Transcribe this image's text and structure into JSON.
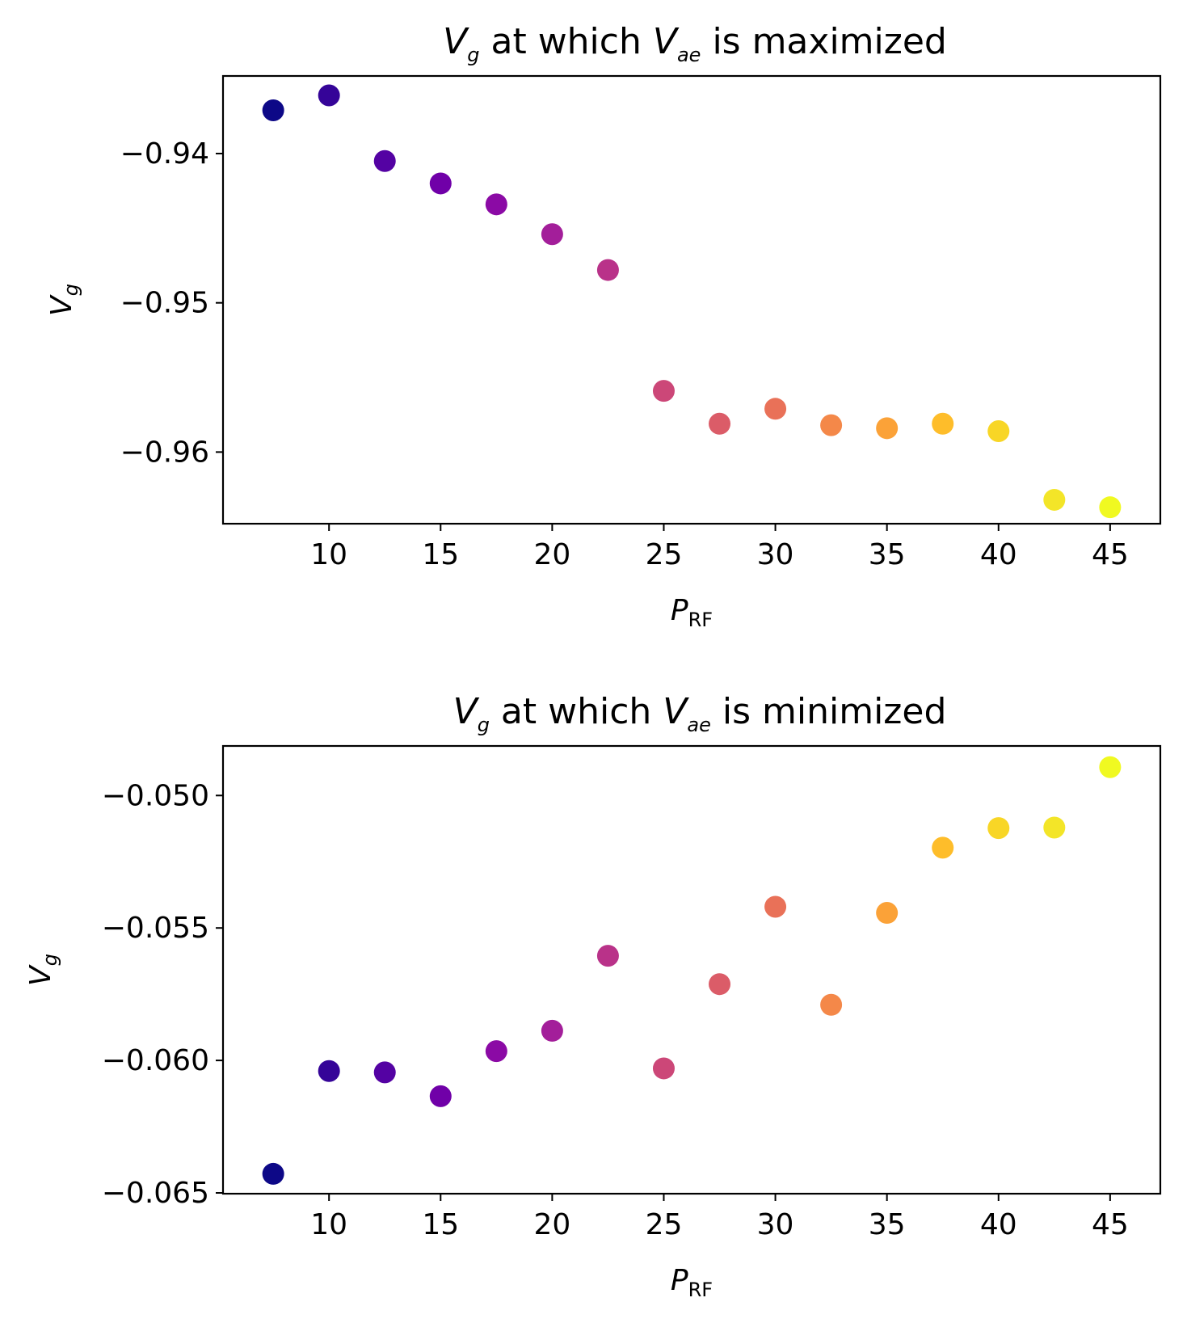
{
  "chart_data": [
    {
      "type": "scatter",
      "title": {
        "v": "V",
        "v_sub": "g",
        "mid": " at which ",
        "v2": "V",
        "v2_sub": "ae",
        "end": " is maximized"
      },
      "xlabel": {
        "main": "P",
        "sub": "RF"
      },
      "ylabel": {
        "main": "V",
        "sub": "g"
      },
      "xlim": [
        5.25,
        47.25
      ],
      "ylim": [
        -0.9648,
        -0.9348
      ],
      "xticks": [
        10,
        15,
        20,
        25,
        30,
        35,
        40,
        45
      ],
      "xtick_labels": [
        "10",
        "15",
        "20",
        "25",
        "30",
        "35",
        "40",
        "45"
      ],
      "yticks": [
        -0.94,
        -0.95,
        -0.96
      ],
      "ytick_labels": [
        "−0.94",
        "−0.95",
        "−0.96"
      ],
      "colormap": "plasma",
      "points": [
        {
          "x": 7.5,
          "y": -0.9371,
          "color": "#0d0887"
        },
        {
          "x": 10,
          "y": -0.9361,
          "color": "#350498"
        },
        {
          "x": 12.5,
          "y": -0.9405,
          "color": "#5402a3"
        },
        {
          "x": 15,
          "y": -0.942,
          "color": "#7000a8"
        },
        {
          "x": 17.5,
          "y": -0.9434,
          "color": "#8b0aa5"
        },
        {
          "x": 20,
          "y": -0.9454,
          "color": "#a31e9a"
        },
        {
          "x": 22.5,
          "y": -0.9478,
          "color": "#b93289"
        },
        {
          "x": 25,
          "y": -0.9559,
          "color": "#cc4778"
        },
        {
          "x": 27.5,
          "y": -0.9581,
          "color": "#db5c68"
        },
        {
          "x": 30,
          "y": -0.9571,
          "color": "#e97158"
        },
        {
          "x": 32.5,
          "y": -0.9582,
          "color": "#f48849"
        },
        {
          "x": 35,
          "y": -0.9584,
          "color": "#fba238"
        },
        {
          "x": 37.5,
          "y": -0.9581,
          "color": "#febd2a"
        },
        {
          "x": 40,
          "y": -0.9586,
          "color": "#f8d626"
        },
        {
          "x": 42.5,
          "y": -0.9632,
          "color": "#f3e528"
        },
        {
          "x": 45,
          "y": -0.9637,
          "color": "#f0f921"
        }
      ]
    },
    {
      "type": "scatter",
      "title": {
        "v": "V",
        "v_sub": "g",
        "mid": " at which ",
        "v2": "V",
        "v2_sub": "ae",
        "end": " is minimized"
      },
      "xlabel": {
        "main": "P",
        "sub": "RF"
      },
      "ylabel": {
        "main": "V",
        "sub": "g"
      },
      "xlim": [
        5.25,
        47.25
      ],
      "ylim": [
        -0.06503,
        -0.04813
      ],
      "xticks": [
        10,
        15,
        20,
        25,
        30,
        35,
        40,
        45
      ],
      "xtick_labels": [
        "10",
        "15",
        "20",
        "25",
        "30",
        "35",
        "40",
        "45"
      ],
      "yticks": [
        -0.05,
        -0.055,
        -0.06,
        -0.065
      ],
      "ytick_labels": [
        "−0.050",
        "−0.055",
        "−0.060",
        "−0.065"
      ],
      "colormap": "plasma",
      "points": [
        {
          "x": 7.5,
          "y": -0.06428,
          "color": "#0d0887"
        },
        {
          "x": 10,
          "y": -0.0604,
          "color": "#350498"
        },
        {
          "x": 12.5,
          "y": -0.06045,
          "color": "#5402a3"
        },
        {
          "x": 15,
          "y": -0.06135,
          "color": "#7000a8"
        },
        {
          "x": 17.5,
          "y": -0.05965,
          "color": "#8b0aa5"
        },
        {
          "x": 20,
          "y": -0.05888,
          "color": "#a31e9a"
        },
        {
          "x": 22.5,
          "y": -0.05605,
          "color": "#b93289"
        },
        {
          "x": 25,
          "y": -0.0603,
          "color": "#cc4778"
        },
        {
          "x": 27.5,
          "y": -0.05712,
          "color": "#db5c68"
        },
        {
          "x": 30,
          "y": -0.0542,
          "color": "#e97158"
        },
        {
          "x": 32.5,
          "y": -0.0579,
          "color": "#f48849"
        },
        {
          "x": 35,
          "y": -0.05443,
          "color": "#fba238"
        },
        {
          "x": 37.5,
          "y": -0.05197,
          "color": "#febd2a"
        },
        {
          "x": 40,
          "y": -0.05123,
          "color": "#f8d626"
        },
        {
          "x": 42.5,
          "y": -0.05121,
          "color": "#f3e528"
        },
        {
          "x": 45,
          "y": -0.04893,
          "color": "#f0f921"
        }
      ]
    }
  ]
}
